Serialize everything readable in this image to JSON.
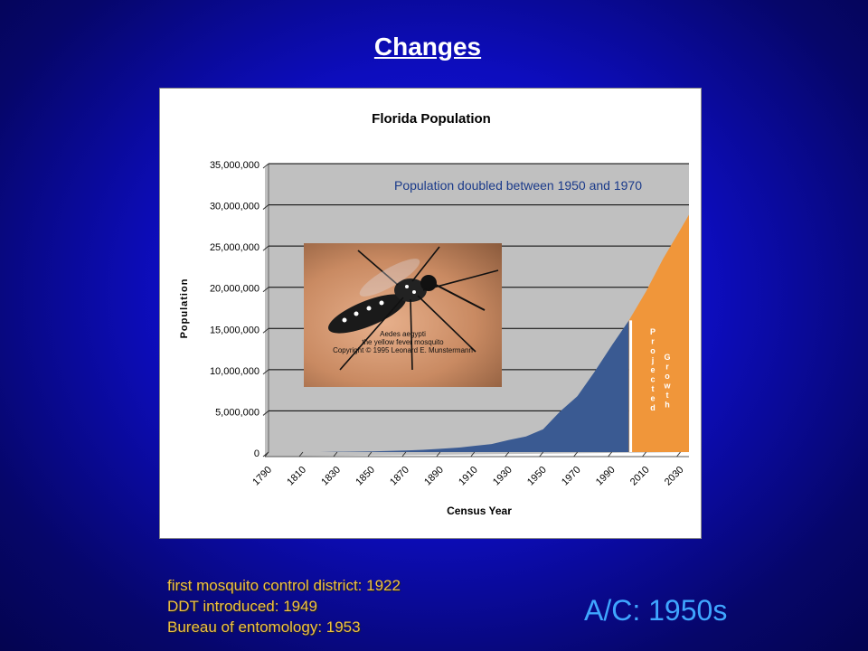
{
  "slide": {
    "title": "Changes",
    "notes": [
      "first mosquito control district: 1922",
      "DDT  introduced: 1949",
      "Bureau of entomology: 1953"
    ],
    "ac_label": "A/C: 1950s"
  },
  "photo": {
    "caption_lines": [
      "Aedes aegypti",
      "the yellow fever mosquito",
      "Copyright © 1995 Leonard E. Munstermann"
    ]
  },
  "chart_data": {
    "type": "area",
    "title": "Florida Population",
    "xlabel": "Census Year",
    "ylabel": "Population",
    "annotation": "Population doubled between 1950 and 1970",
    "projected_label": "Projected",
    "growth_label": "Growth",
    "x_ticks": [
      "1790",
      "1810",
      "1830",
      "1850",
      "1870",
      "1890",
      "1910",
      "1930",
      "1950",
      "1970",
      "1990",
      "2010",
      "2030"
    ],
    "y_ticks": [
      "0",
      "5,000,000",
      "10,000,000",
      "15,000,000",
      "20,000,000",
      "25,000,000",
      "30,000,000",
      "35,000,000"
    ],
    "ylim": [
      0,
      35000000
    ],
    "xlim": [
      1790,
      2035
    ],
    "historical": {
      "x": [
        1790,
        1800,
        1810,
        1820,
        1830,
        1840,
        1850,
        1860,
        1870,
        1880,
        1890,
        1900,
        1910,
        1920,
        1930,
        1940,
        1950,
        1960,
        1970,
        1980,
        1990,
        2000
      ],
      "y": [
        0,
        0,
        0,
        0,
        35000,
        55000,
        87000,
        140000,
        188000,
        269000,
        391000,
        529000,
        752000,
        968000,
        1468000,
        1897000,
        2771000,
        4952000,
        6789000,
        9747000,
        12938000,
        15982000
      ]
    },
    "projected": {
      "x": [
        2000,
        2010,
        2020,
        2030,
        2035
      ],
      "y": [
        15982000,
        19500000,
        23500000,
        27000000,
        28800000
      ]
    },
    "colors": {
      "historical": "#3a5a92",
      "projected": "#f0963a",
      "plot_bg": "#c0c0c0",
      "divider": "#ffffff"
    },
    "grid": true
  }
}
